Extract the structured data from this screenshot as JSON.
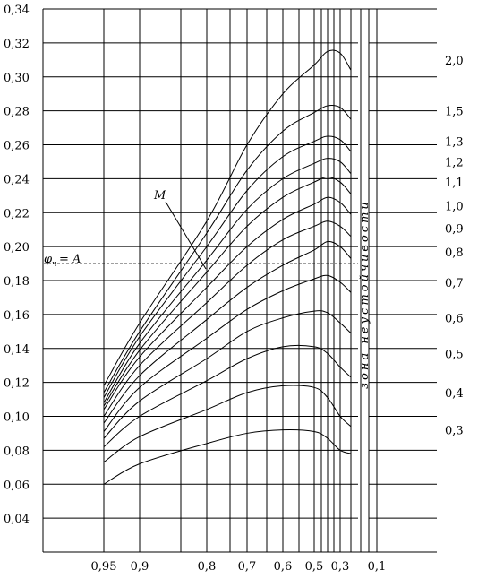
{
  "chart_data": {
    "type": "line",
    "title": "",
    "xlabel": "",
    "ylabel": "",
    "ylim": [
      0.02,
      0.34
    ],
    "grid": true,
    "y_ticks": [
      "0,34",
      "0,32",
      "0,30",
      "0,28",
      "0,26",
      "0,24",
      "0,22",
      "0,20",
      "0,18",
      "0,16",
      "0,14",
      "0,12",
      "0,10",
      "0,08",
      "0,06",
      "0,04"
    ],
    "x_ticks": [
      "0,95",
      "0,9",
      "0,8",
      "0,7",
      "0,6",
      "0,5",
      "0,3",
      "0,1"
    ],
    "x_tick_values": [
      0.95,
      0.9,
      0.8,
      0.7,
      0.6,
      0.5,
      0.3,
      0.1
    ],
    "x_extra_gridlines": [
      0.85,
      0.75,
      0.65,
      0.55,
      0.45,
      0.4,
      0.35,
      0.2
    ],
    "annotations": {
      "m_label": "M",
      "phi_label_main": "φ",
      "phi_label_sub": "ч",
      "phi_label_rest": " = A",
      "phi_value": 0.19,
      "zone_label": "зона неустойчивости"
    },
    "series": [
      {
        "label": "2,0",
        "x": [
          0.95,
          0.9,
          0.8,
          0.7,
          0.6,
          0.5,
          0.4,
          0.3,
          0.25
        ],
        "y": [
          0.118,
          0.155,
          0.215,
          0.26,
          0.29,
          0.307,
          0.315,
          0.314,
          0.304
        ]
      },
      {
        "label": "1,5",
        "x": [
          0.95,
          0.9,
          0.8,
          0.7,
          0.6,
          0.5,
          0.4,
          0.3,
          0.25
        ],
        "y": [
          0.114,
          0.15,
          0.208,
          0.245,
          0.268,
          0.279,
          0.283,
          0.282,
          0.275
        ]
      },
      {
        "label": "1,3",
        "x": [
          0.95,
          0.9,
          0.8,
          0.7,
          0.6,
          0.5,
          0.4,
          0.3,
          0.25
        ],
        "y": [
          0.111,
          0.147,
          0.2,
          0.233,
          0.253,
          0.262,
          0.265,
          0.263,
          0.256
        ]
      },
      {
        "label": "1,2",
        "x": [
          0.95,
          0.9,
          0.8,
          0.7,
          0.6,
          0.5,
          0.4,
          0.3,
          0.25
        ],
        "y": [
          0.108,
          0.143,
          0.192,
          0.222,
          0.24,
          0.249,
          0.252,
          0.25,
          0.243
        ]
      },
      {
        "label": "1,1",
        "x": [
          0.95,
          0.9,
          0.8,
          0.7,
          0.6,
          0.5,
          0.4,
          0.3,
          0.25
        ],
        "y": [
          0.106,
          0.139,
          0.185,
          0.212,
          0.229,
          0.238,
          0.241,
          0.238,
          0.231
        ]
      },
      {
        "label": "1,0",
        "x": [
          0.95,
          0.9,
          0.8,
          0.7,
          0.6,
          0.5,
          0.4,
          0.3,
          0.25
        ],
        "y": [
          0.104,
          0.135,
          0.176,
          0.2,
          0.216,
          0.225,
          0.229,
          0.226,
          0.219
        ]
      },
      {
        "label": "0,9",
        "x": [
          0.95,
          0.9,
          0.8,
          0.7,
          0.6,
          0.5,
          0.4,
          0.3,
          0.25
        ],
        "y": [
          0.1,
          0.13,
          0.167,
          0.189,
          0.204,
          0.212,
          0.215,
          0.212,
          0.206
        ]
      },
      {
        "label": "0,8",
        "x": [
          0.95,
          0.9,
          0.8,
          0.7,
          0.6,
          0.5,
          0.4,
          0.3,
          0.25
        ],
        "y": [
          0.096,
          0.124,
          0.157,
          0.176,
          0.189,
          0.198,
          0.203,
          0.2,
          0.193
        ]
      },
      {
        "label": "0,7",
        "x": [
          0.95,
          0.9,
          0.8,
          0.7,
          0.6,
          0.5,
          0.4,
          0.3,
          0.25
        ],
        "y": [
          0.091,
          0.117,
          0.146,
          0.163,
          0.174,
          0.181,
          0.183,
          0.179,
          0.173
        ]
      },
      {
        "label": "0,6",
        "x": [
          0.95,
          0.9,
          0.8,
          0.7,
          0.6,
          0.5,
          0.4,
          0.3,
          0.25
        ],
        "y": [
          0.087,
          0.109,
          0.134,
          0.15,
          0.158,
          0.162,
          0.161,
          0.155,
          0.149
        ]
      },
      {
        "label": "0,5",
        "x": [
          0.95,
          0.9,
          0.8,
          0.7,
          0.6,
          0.5,
          0.4,
          0.3,
          0.25
        ],
        "y": [
          0.082,
          0.1,
          0.121,
          0.134,
          0.141,
          0.141,
          0.137,
          0.129,
          0.123
        ]
      },
      {
        "label": "0,4",
        "x": [
          0.95,
          0.9,
          0.8,
          0.7,
          0.6,
          0.5,
          0.4,
          0.3,
          0.25
        ],
        "y": [
          0.073,
          0.088,
          0.104,
          0.114,
          0.118,
          0.117,
          0.111,
          0.1,
          0.094
        ]
      },
      {
        "label": "0,3",
        "x": [
          0.95,
          0.9,
          0.8,
          0.7,
          0.6,
          0.5,
          0.4,
          0.3,
          0.25
        ],
        "y": [
          0.06,
          0.072,
          0.084,
          0.09,
          0.092,
          0.091,
          0.087,
          0.08,
          0.078
        ]
      }
    ]
  }
}
